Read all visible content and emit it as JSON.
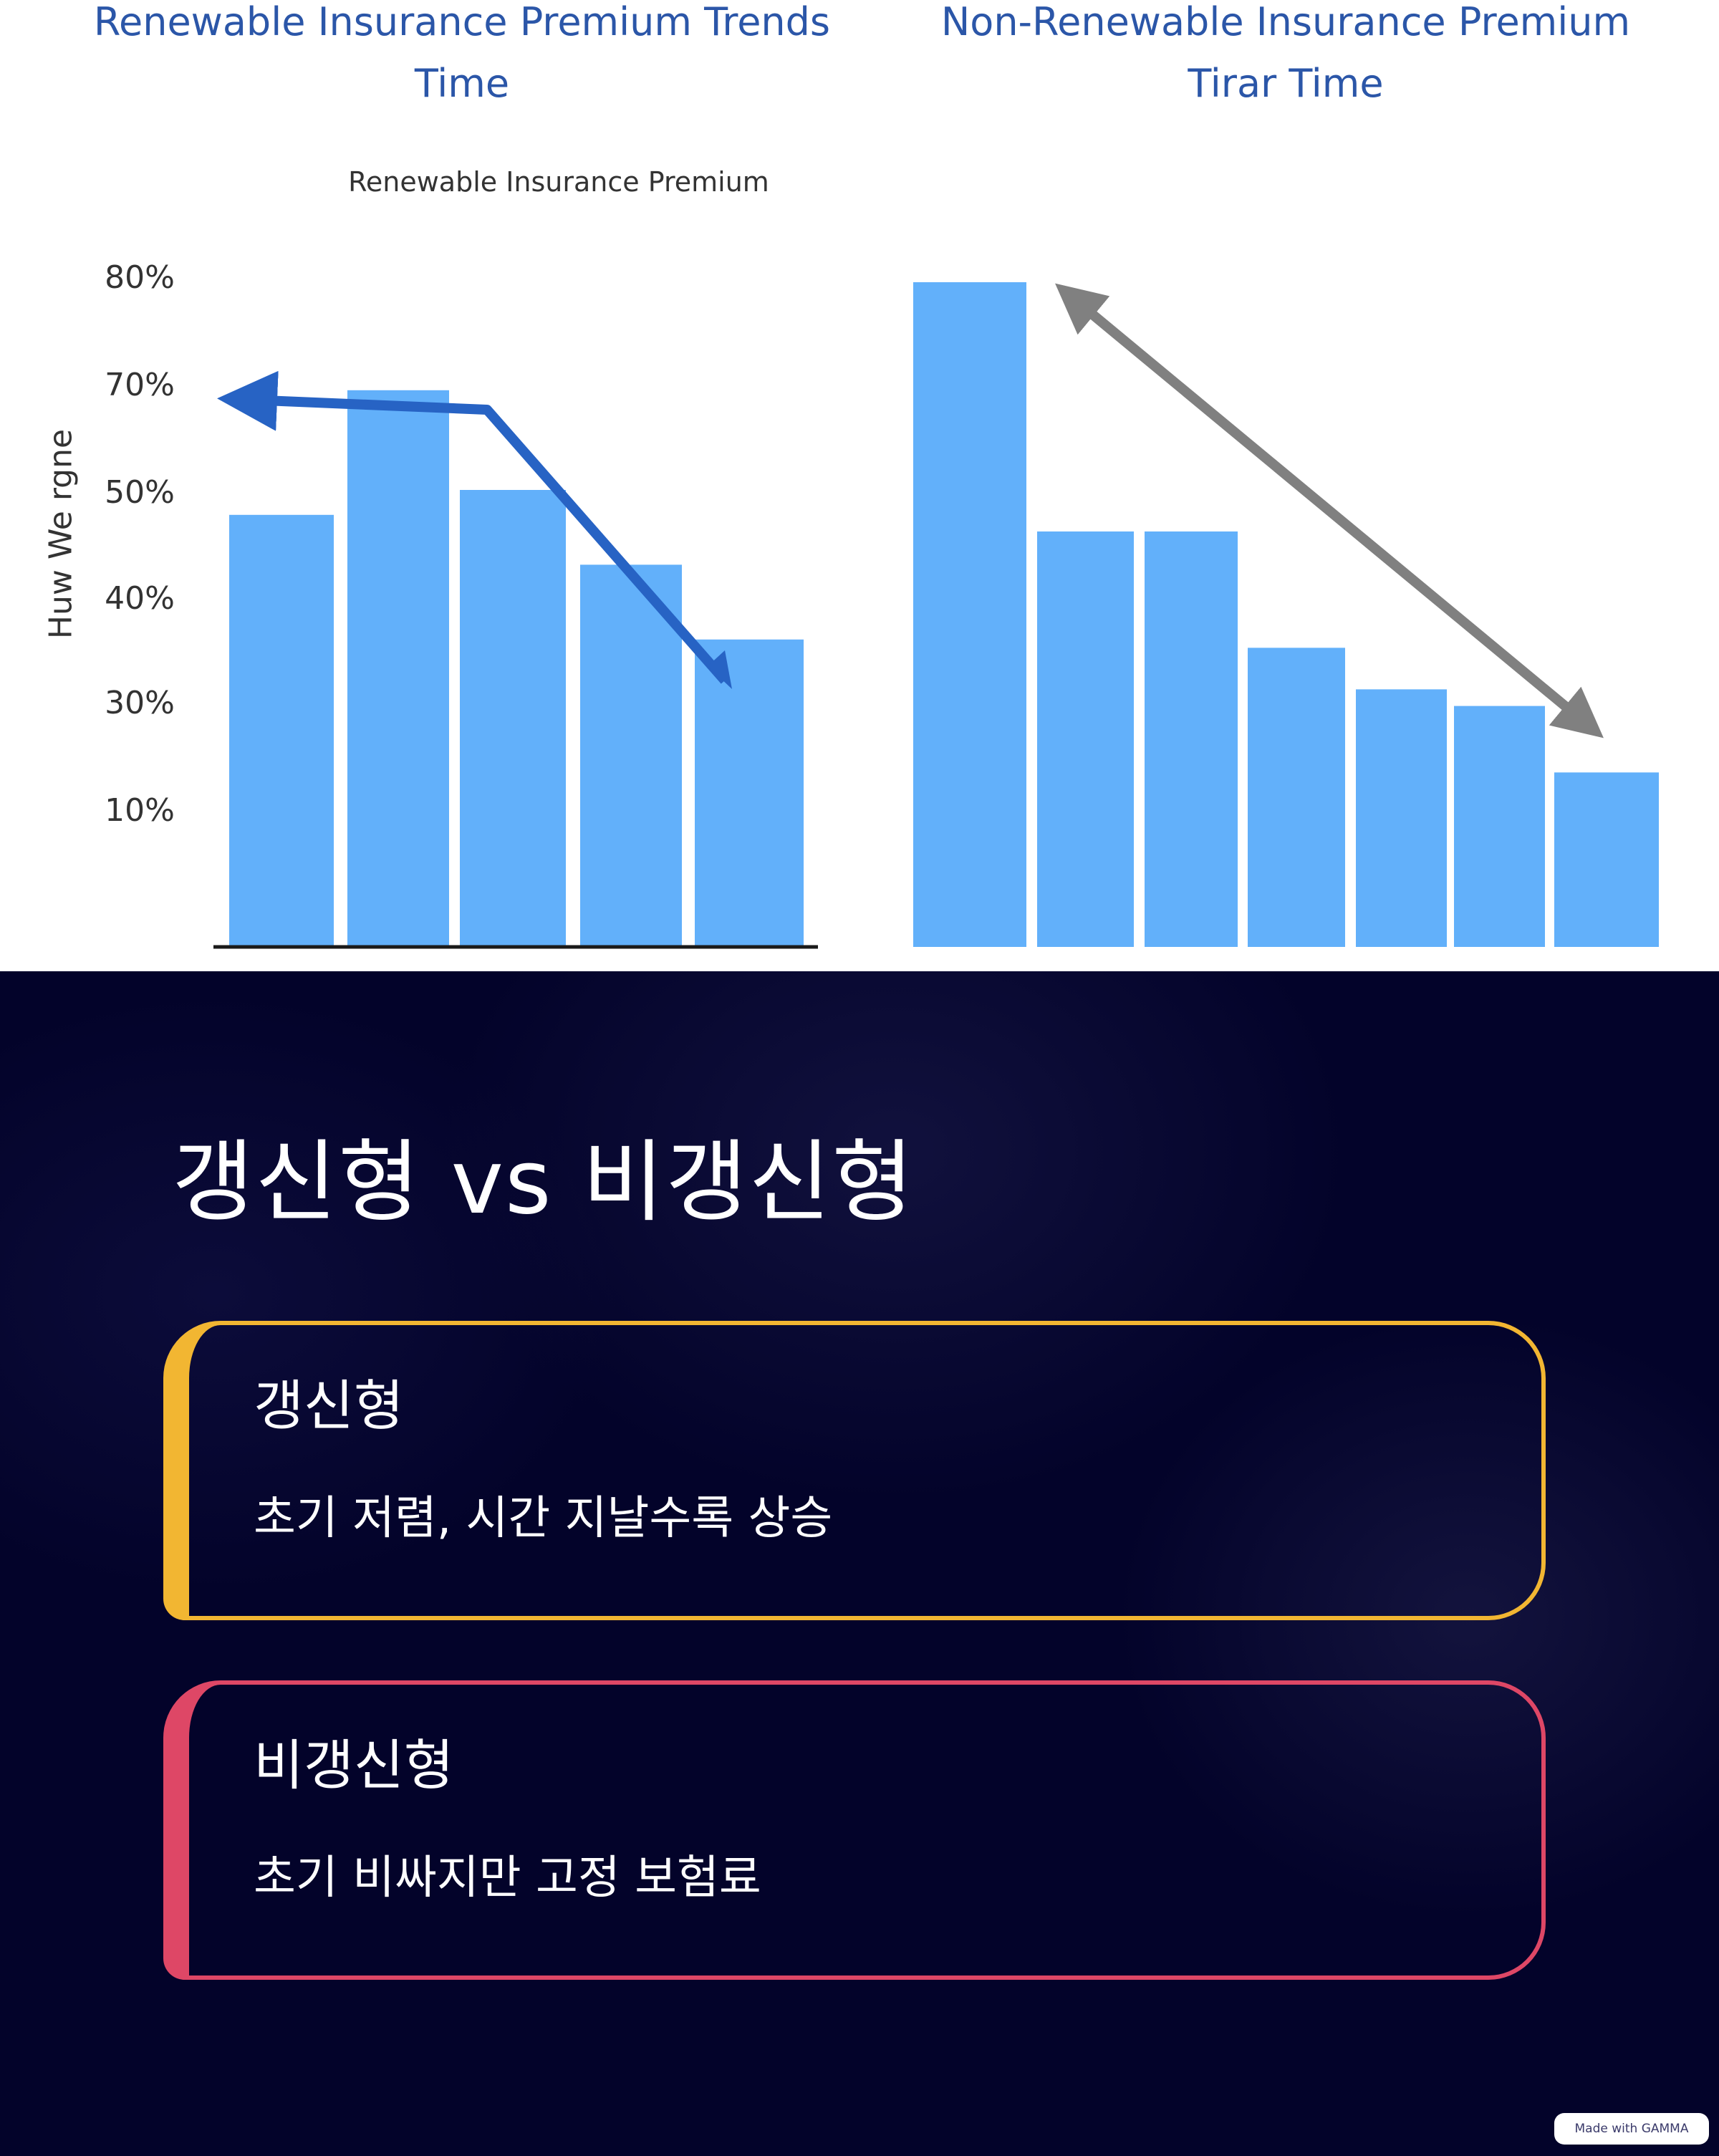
{
  "chart_data": [
    {
      "type": "bar",
      "title": "Renewable Insurance Premium Trends Time",
      "subtitle": "Renewable Insurance Premium",
      "ylabel": "Huw We rgne",
      "xlabel": "",
      "ytick_labels": [
        "80%",
        "70%",
        "50%",
        "40%",
        "30%",
        "10%"
      ],
      "values": [
        52,
        67,
        55,
        46,
        37
      ],
      "trend_arrow": {
        "color": "#2763c4",
        "direction": "down-right"
      },
      "bar_color": "#62b0fa",
      "grid": false,
      "legend": "none"
    },
    {
      "type": "bar",
      "title": "Non-Renewable Insurance Premium Tirar Time",
      "xlabel": "",
      "ylabel": "",
      "values": [
        80,
        50,
        50,
        36,
        31,
        29,
        21
      ],
      "trend_arrow": {
        "color": "#808080",
        "direction": "double-headed"
      },
      "bar_color": "#62b0fa",
      "grid": false,
      "legend": "none"
    }
  ],
  "slide": {
    "title": "갱신형 vs 비갱신형",
    "cards": [
      {
        "heading": "갱신형",
        "body": "초기 저렴, 시간 지날수록 상승",
        "accent": "#f2b632"
      },
      {
        "heading": "비갱신형",
        "body": "초기 비싸지만 고정 보험료",
        "accent": "#de4766"
      }
    ]
  },
  "badge": {
    "label": "Made with GAMMA"
  }
}
